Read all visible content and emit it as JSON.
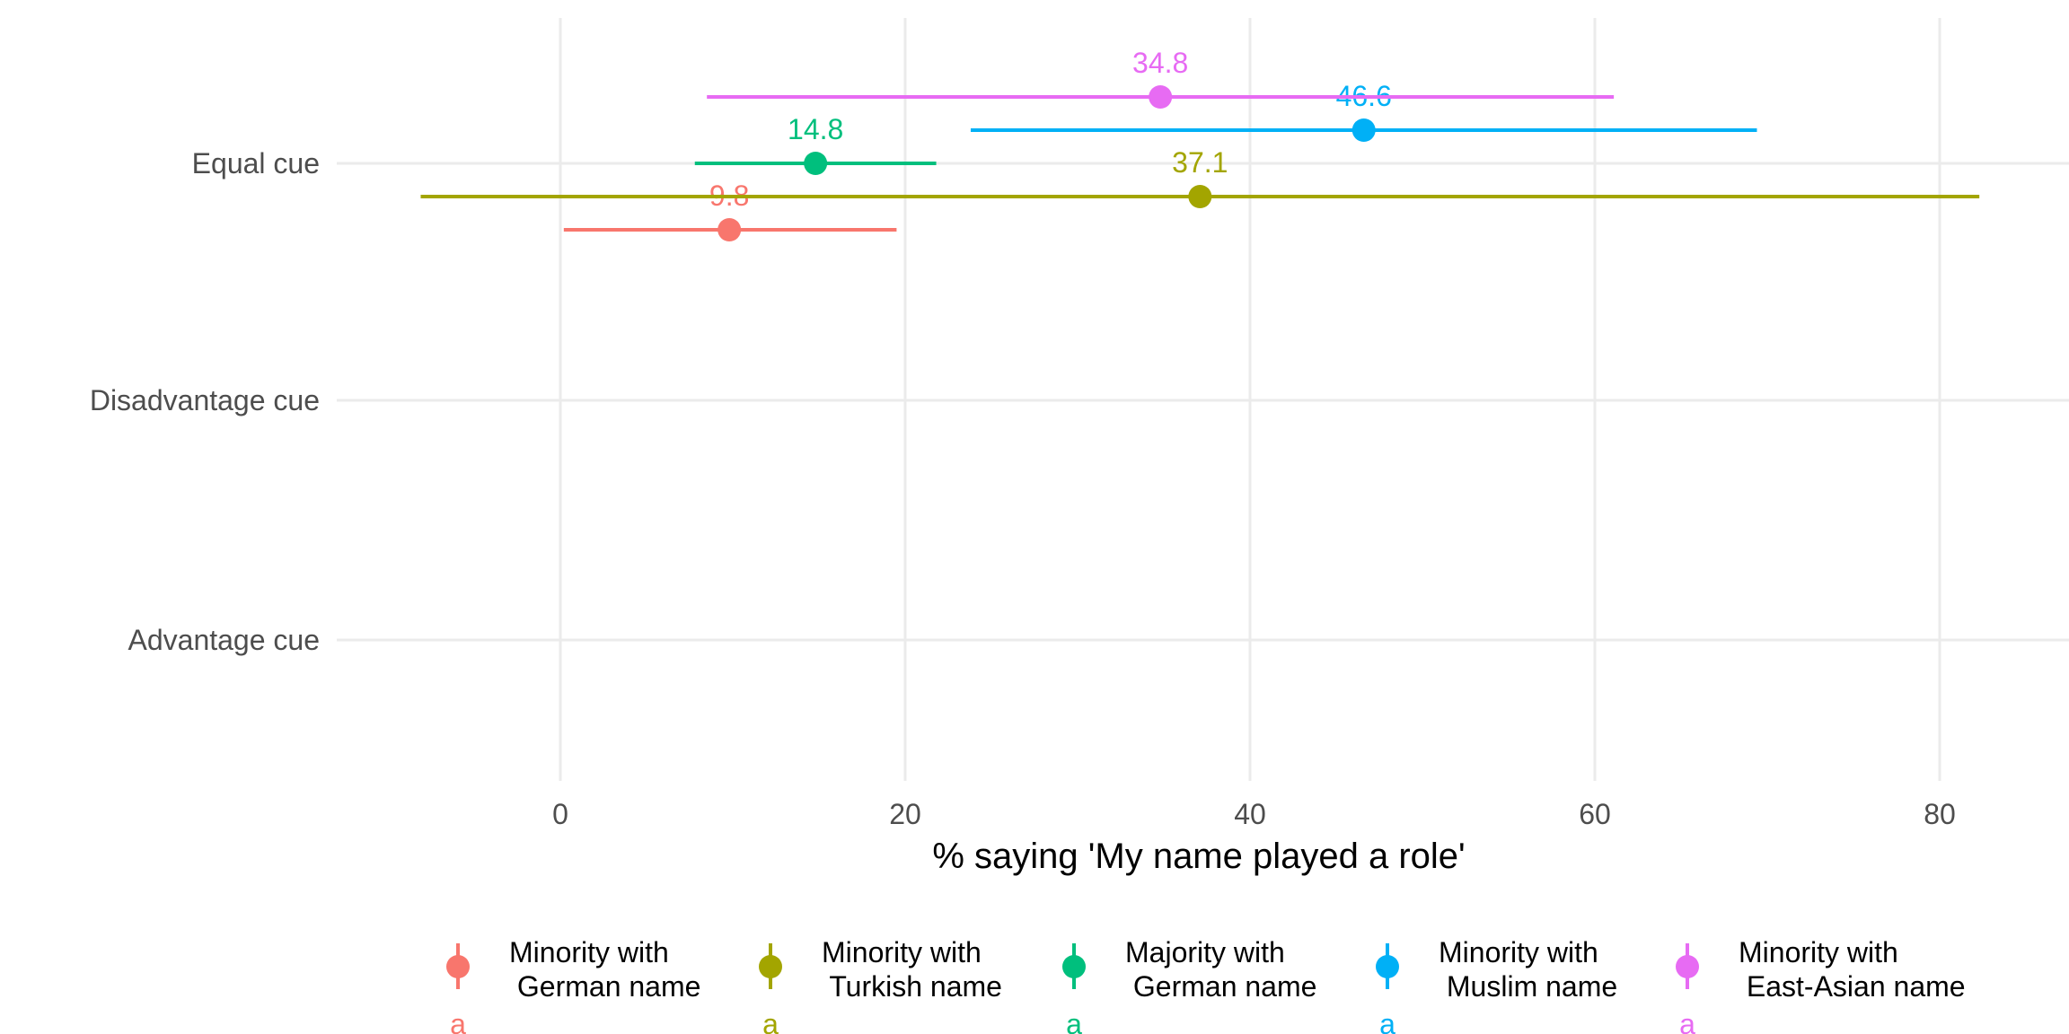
{
  "chart_data": {
    "type": "scatter",
    "subtype": "dot-with-error-bars",
    "xlabel": "% saying 'My name played a role'",
    "ylabel": "",
    "xlim": [
      -16,
      84
    ],
    "x_ticks": [
      0,
      20,
      40,
      60,
      80
    ],
    "categories": [
      "Equal cue",
      "Disadvantage cue",
      "Advantage cue"
    ],
    "grid": true,
    "legend_position": "bottom",
    "series": [
      {
        "name": "Minority with\n German name",
        "color": "#F8766D",
        "points": [
          {
            "category": "Equal cue",
            "value": 9.8,
            "lower": 0.2,
            "upper": 19.5,
            "label": "9.8"
          }
        ],
        "legend_glyph": "a"
      },
      {
        "name": "Minority with\n Turkish name",
        "color": "#A3A500",
        "points": [
          {
            "category": "Equal cue",
            "value": 37.1,
            "lower": -8.1,
            "upper": 82.3,
            "label": "37.1"
          }
        ],
        "legend_glyph": "a"
      },
      {
        "name": "Majority with\n German name",
        "color": "#00BF7D",
        "points": [
          {
            "category": "Equal cue",
            "value": 14.8,
            "lower": 7.8,
            "upper": 21.8,
            "label": "14.8"
          }
        ],
        "legend_glyph": "a"
      },
      {
        "name": "Minority with\n Muslim name",
        "color": "#00B0F6",
        "points": [
          {
            "category": "Equal cue",
            "value": 46.6,
            "lower": 23.8,
            "upper": 69.4,
            "label": "46.6"
          }
        ],
        "legend_glyph": "a"
      },
      {
        "name": "Minority with\n East-Asian name",
        "color": "#E76BF3",
        "points": [
          {
            "category": "Equal cue",
            "value": 34.8,
            "lower": 8.5,
            "upper": 61.1,
            "label": "34.8"
          }
        ],
        "legend_glyph": "a"
      }
    ]
  }
}
